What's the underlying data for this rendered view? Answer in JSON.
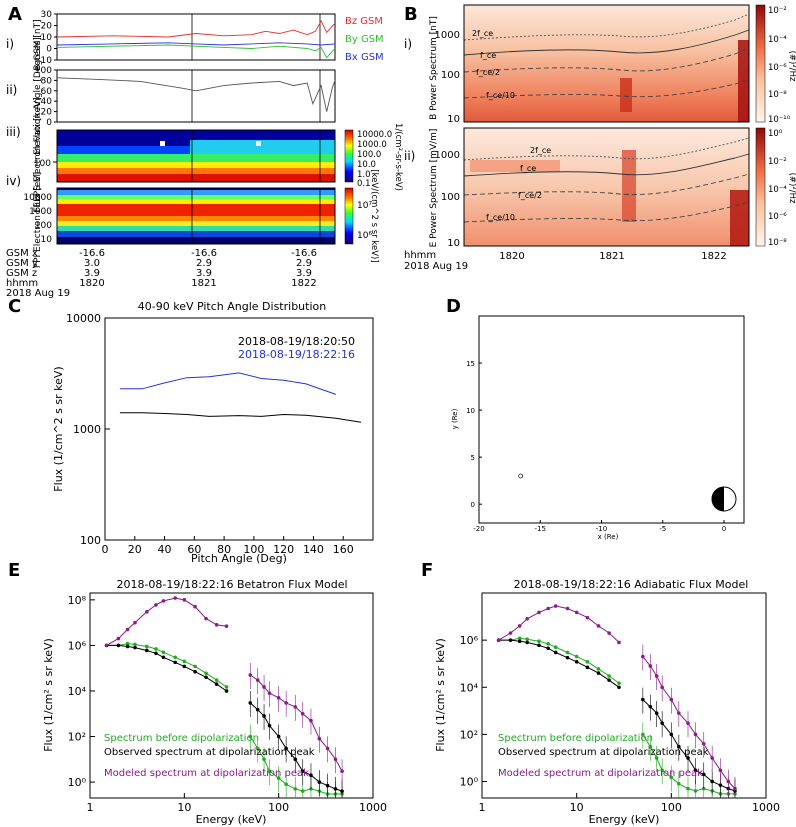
{
  "panel_labels": {
    "a": "A",
    "b": "B",
    "c": "C",
    "d": "D",
    "e": "E",
    "f": "F"
  },
  "chart_data": [
    {
      "id": "A-i",
      "type": "line",
      "ylabel": "B-GSM [nT]",
      "sub": "i)",
      "ylim": [
        -10,
        30
      ],
      "yticks": [
        "30",
        "20",
        "10",
        "0",
        "-10"
      ],
      "legend": [
        "Bz GSM",
        "By GSM",
        "Bx GSM"
      ],
      "series": [
        {
          "name": "Bz GSM",
          "color": "#e03030",
          "x": [
            0,
            0.2,
            0.4,
            0.5,
            0.6,
            0.7,
            0.75,
            0.8,
            0.85,
            0.9,
            0.93,
            0.95,
            0.97,
            1.0
          ],
          "values": [
            10,
            11,
            10,
            13,
            11,
            12,
            15,
            13,
            16,
            12,
            15,
            24,
            14,
            22
          ]
        },
        {
          "name": "By GSM",
          "color": "#30c030",
          "x": [
            0,
            0.2,
            0.4,
            0.5,
            0.6,
            0.7,
            0.8,
            0.9,
            0.93,
            0.95,
            0.97,
            1.0
          ],
          "values": [
            1,
            2,
            3,
            2,
            1,
            0,
            2,
            0,
            -2,
            1,
            -8,
            0
          ]
        },
        {
          "name": "Bx GSM",
          "color": "#3030e0",
          "x": [
            0,
            0.2,
            0.4,
            0.5,
            0.6,
            0.7,
            0.8,
            0.9,
            0.95,
            1.0
          ],
          "values": [
            3,
            4,
            5,
            4,
            3,
            4,
            5,
            4,
            3,
            4
          ]
        }
      ]
    },
    {
      "id": "A-ii",
      "type": "line",
      "ylabel": "Elevation Angle [Degrees]",
      "sub": "ii)",
      "ylim": [
        0,
        100
      ],
      "yticks": [
        "100",
        "80",
        "60",
        "40",
        "20",
        "0"
      ],
      "series": [
        {
          "name": "elevation",
          "color": "#555555",
          "x": [
            0,
            0.15,
            0.3,
            0.45,
            0.5,
            0.6,
            0.7,
            0.8,
            0.85,
            0.9,
            0.92,
            0.95,
            0.97,
            0.99,
            1.0
          ],
          "values": [
            85,
            82,
            78,
            65,
            60,
            70,
            75,
            78,
            70,
            75,
            35,
            70,
            20,
            65,
            80
          ]
        }
      ]
    },
    {
      "id": "A-iii",
      "type": "heatmap",
      "ylabel": "FEEPS Electron Flux [keV]",
      "sub": "iii)",
      "ytick": "100",
      "colorbar_label": "1/(cm²-sr-s-keV)",
      "colorbar_ticks": [
        "10000.0",
        "1000.0",
        "100.0",
        "10.0",
        "1.0",
        "0.1"
      ]
    },
    {
      "id": "A-iv",
      "type": "heatmap",
      "ylabel": "FPI Electron Flux [eV]",
      "sub": "iv)",
      "yticks": [
        "10000",
        "1000",
        "100",
        "10"
      ],
      "colorbar_label": "[keV/(cm^2 s sr keV)]",
      "colorbar_ticks": [
        "10⁷",
        "10⁶"
      ]
    },
    {
      "id": "A-axis",
      "type": "table",
      "rows": [
        "GSM x",
        "GSM y",
        "GSM z",
        "hhmm",
        "2018 Aug 19"
      ],
      "columns": [
        {
          "x": "-16.6",
          "y": "3.0",
          "z": "3.9",
          "t": "1820"
        },
        {
          "x": "-16.6",
          "y": "2.9",
          "z": "3.9",
          "t": "1821"
        },
        {
          "x": "-16.6",
          "y": "2.9",
          "z": "3.9",
          "t": "1822"
        }
      ]
    },
    {
      "id": "B-i",
      "type": "heatmap",
      "ylabel": "B Power Spectrum [nT]",
      "sub": "i)",
      "yticks": [
        "1000",
        "100",
        "10"
      ],
      "curves": [
        "2f_ce",
        "f_ce",
        "f_ce/2",
        "f_ce/10"
      ],
      "colorbar_label": "(#)²/Hz",
      "colorbar_ticks": [
        "10⁻²",
        "10⁻⁴",
        "10⁻⁶",
        "10⁻⁸",
        "10⁻¹⁰"
      ]
    },
    {
      "id": "B-ii",
      "type": "heatmap",
      "ylabel": "E Power Spectrum [mV/m]",
      "sub": "ii)",
      "yticks": [
        "1000",
        "100",
        "10"
      ],
      "curves": [
        "2f_ce",
        "f_ce",
        "f_ce/2",
        "f_ce/10"
      ],
      "colorbar_label": "(#)²/Hz",
      "colorbar_ticks": [
        "10⁰",
        "10⁻²",
        "10⁻⁴",
        "10⁻⁶",
        "10⁻⁸"
      ],
      "xticks": [
        "1820",
        "1821",
        "1822"
      ],
      "xlabel_lines": [
        "hhmm",
        "2018 Aug 19"
      ]
    },
    {
      "id": "C",
      "type": "line",
      "title": "40-90 keV Pitch Angle Distribution",
      "xlabel": "Pitch Angle (Deg)",
      "ylabel": "Flux (1/cm^2 s sr keV)",
      "xlim": [
        0,
        180
      ],
      "ylim": [
        100,
        10000
      ],
      "yscale": "log",
      "xticks": [
        0,
        20,
        40,
        60,
        80,
        100,
        120,
        140,
        160
      ],
      "yticks": [
        100,
        1000,
        10000
      ],
      "series": [
        {
          "name": "2018-08-19/18:20:50",
          "color": "#000000",
          "x": [
            10,
            25,
            40,
            55,
            70,
            90,
            105,
            120,
            135,
            155,
            172
          ],
          "values": [
            1400,
            1400,
            1380,
            1350,
            1300,
            1320,
            1300,
            1350,
            1330,
            1250,
            1150
          ]
        },
        {
          "name": "2018-08-19/18:22:16",
          "color": "#2233dd",
          "x": [
            10,
            25,
            40,
            55,
            70,
            90,
            105,
            120,
            135,
            155
          ],
          "values": [
            2300,
            2300,
            2600,
            2900,
            2950,
            3200,
            2850,
            2750,
            2550,
            2050
          ]
        }
      ]
    },
    {
      "id": "D",
      "type": "scatter",
      "xlabel": "x (Re)",
      "ylabel": "y (Re)",
      "xlim": [
        -20,
        0
      ],
      "ylim": [
        -2,
        20
      ],
      "xticks": [
        -20,
        -15,
        -10,
        -5,
        0
      ],
      "yticks": [
        0,
        5,
        10,
        15
      ],
      "points": [
        {
          "x": -16.6,
          "y": 3.0
        }
      ]
    },
    {
      "id": "E",
      "type": "line",
      "title": "2018-08-19/18:22:16 Betatron Flux Model",
      "xlabel": "Energy (keV)",
      "ylabel": "Flux (1/cm² s sr keV)",
      "xscale": "log",
      "yscale": "log",
      "xlim": [
        1,
        1000
      ],
      "ylim": [
        0.2,
        200000000
      ],
      "xticks": [
        1,
        10,
        100,
        1000
      ],
      "yticks": [
        1,
        100,
        10000,
        1000000,
        100000000
      ],
      "legend": [
        "Spectrum before dipolarization",
        "Observed spectrum at dipolarization peak",
        "Modeled spectrum at dipolarization peak"
      ],
      "series": [
        {
          "name": "green",
          "color": "#22aa22",
          "x": [
            1.5,
            2,
            2.5,
            3,
            4,
            5,
            6,
            8,
            10,
            13,
            17,
            22,
            28,
            50,
            60,
            70,
            80,
            100,
            120,
            150,
            180,
            220,
            270,
            330,
            400,
            470
          ],
          "values": [
            1000000,
            1000000,
            1200000,
            1100000,
            900000,
            700000,
            500000,
            300000,
            200000,
            120000,
            60000,
            30000,
            15000,
            100,
            30,
            10,
            3,
            1.5,
            0.8,
            0.5,
            0.4,
            0.5,
            0.4,
            0.3,
            0.3,
            0.3
          ]
        },
        {
          "name": "black",
          "color": "#000000",
          "x": [
            1.5,
            2,
            2.5,
            3,
            4,
            5,
            6,
            8,
            10,
            13,
            17,
            22,
            28,
            50,
            60,
            70,
            80,
            100,
            120,
            150,
            180,
            220,
            270,
            330,
            400,
            470
          ],
          "values": [
            1000000,
            1000000,
            900000,
            800000,
            600000,
            450000,
            300000,
            180000,
            120000,
            70000,
            40000,
            20000,
            10000,
            3000,
            1500,
            800,
            300,
            100,
            30,
            10,
            3,
            2,
            1,
            0.7,
            0.5,
            0.4
          ]
        },
        {
          "name": "purple",
          "color": "#8b1a8b",
          "x": [
            1.5,
            2,
            2.5,
            3,
            4,
            5,
            6,
            8,
            10,
            13,
            17,
            22,
            28,
            50,
            60,
            70,
            80,
            100,
            120,
            150,
            180,
            220,
            270,
            330,
            400,
            470
          ],
          "values": [
            1000000,
            2000000,
            5000000,
            10000000,
            30000000,
            60000000,
            90000000,
            120000000,
            100000000,
            50000000,
            15000000,
            8000000,
            7000000,
            50000,
            30000,
            15000,
            8000,
            5000,
            3000,
            2000,
            1000,
            500,
            80,
            30,
            10,
            3
          ]
        }
      ]
    },
    {
      "id": "F",
      "type": "line",
      "title": "2018-08-19/18:22:16 Adiabatic Flux Model",
      "xlabel": "Energy (keV)",
      "ylabel": "Flux (1/cm² s sr keV)",
      "xscale": "log",
      "yscale": "log",
      "xlim": [
        1,
        1000
      ],
      "ylim": [
        0.2,
        100000000
      ],
      "xticks": [
        1,
        10,
        100,
        1000
      ],
      "yticks": [
        1,
        100,
        10000,
        1000000
      ],
      "legend": [
        "Spectrum before dipolarization",
        "Observed spectrum at dipolarization peak",
        "Modeled spectrum at dipolarization peak"
      ],
      "series": [
        {
          "name": "green",
          "color": "#22aa22",
          "x": [
            1.5,
            2,
            2.5,
            3,
            4,
            5,
            6,
            8,
            10,
            13,
            17,
            22,
            28,
            50,
            60,
            70,
            80,
            100,
            120,
            150,
            180,
            220,
            270,
            330,
            400,
            470
          ],
          "values": [
            1000000,
            1000000,
            1200000,
            1100000,
            900000,
            700000,
            500000,
            300000,
            200000,
            120000,
            60000,
            30000,
            15000,
            100,
            30,
            10,
            3,
            1.5,
            0.8,
            0.5,
            0.4,
            0.5,
            0.4,
            0.3,
            0.3,
            0.3
          ]
        },
        {
          "name": "black",
          "color": "#000000",
          "x": [
            1.5,
            2,
            2.5,
            3,
            4,
            5,
            6,
            8,
            10,
            13,
            17,
            22,
            28,
            50,
            60,
            70,
            80,
            100,
            120,
            150,
            180,
            220,
            270,
            330,
            400,
            470
          ],
          "values": [
            1000000,
            1000000,
            900000,
            800000,
            600000,
            450000,
            300000,
            180000,
            120000,
            70000,
            40000,
            20000,
            10000,
            3000,
            1500,
            800,
            300,
            100,
            30,
            10,
            3,
            2,
            1,
            0.7,
            0.5,
            0.4
          ]
        },
        {
          "name": "purple",
          "color": "#8b1a8b",
          "x": [
            1.5,
            2,
            2.5,
            3,
            4,
            5,
            6,
            8,
            10,
            13,
            17,
            22,
            28,
            50,
            60,
            70,
            80,
            100,
            120,
            150,
            180,
            220,
            270,
            330,
            400,
            470
          ],
          "values": [
            1000000,
            2000000,
            4000000,
            8000000,
            15000000,
            22000000,
            28000000,
            22000000,
            15000000,
            9000000,
            4000000,
            2000000,
            800000,
            200000,
            80000,
            30000,
            10000,
            3000,
            800,
            300,
            100,
            40,
            10,
            3,
            1,
            0.5
          ]
        }
      ]
    }
  ]
}
